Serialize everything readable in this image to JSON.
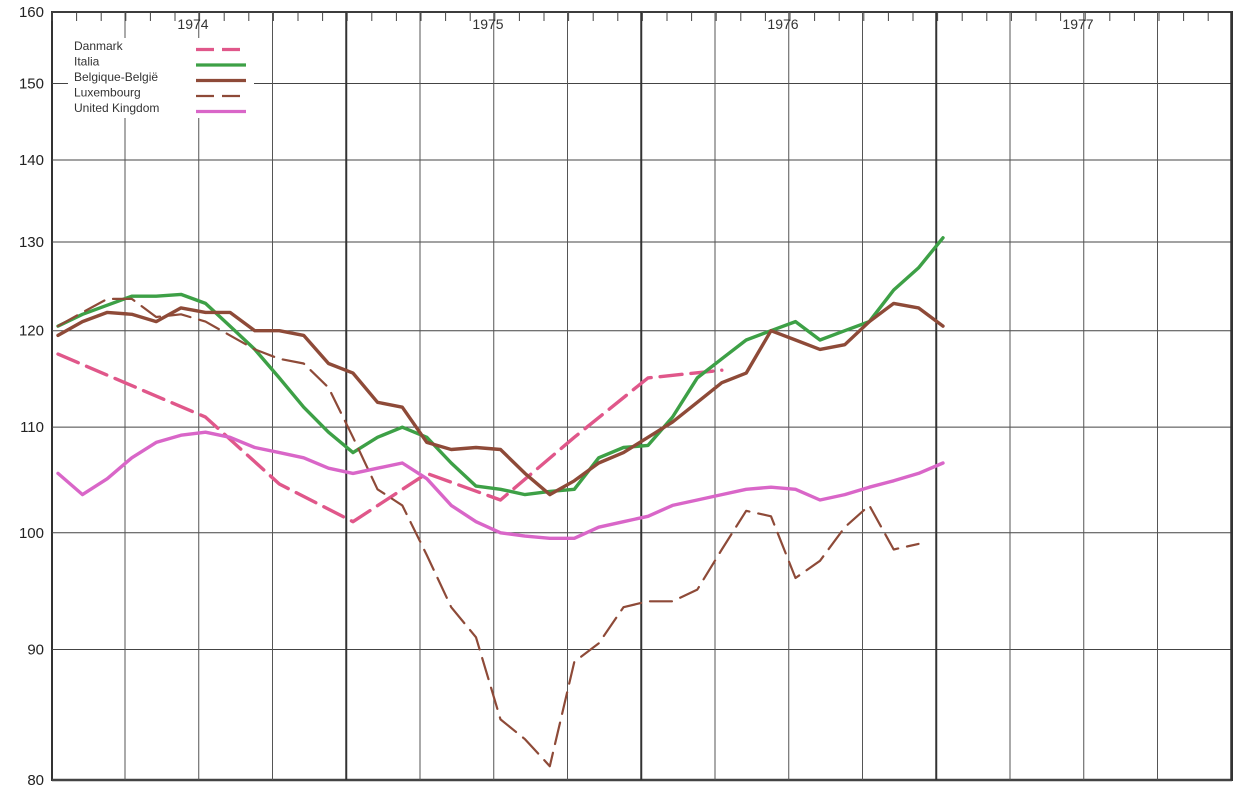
{
  "chart_data": {
    "type": "line",
    "yscale": "log",
    "ylim": [
      80,
      160
    ],
    "yticks": [
      80,
      90,
      100,
      110,
      120,
      130,
      140,
      150,
      160
    ],
    "xlim": [
      1974.0,
      1977.94
    ],
    "year_labels": [
      {
        "x": 1974.0,
        "label": "1974"
      },
      {
        "x": 1975.0,
        "label": "1975"
      },
      {
        "x": 1976.0,
        "label": "1976"
      },
      {
        "x": 1977.0,
        "label": "1977"
      }
    ],
    "legend_position": "top-left",
    "grid": true,
    "series": [
      {
        "name": "Danmark",
        "color": "#e0578a",
        "style": "dashed",
        "points": [
          [
            1974.0,
            117.5
          ],
          [
            1974.5,
            111.0
          ],
          [
            1974.75,
            104.5
          ],
          [
            1975.0,
            101.0
          ],
          [
            1975.25,
            105.5
          ],
          [
            1975.5,
            103.0
          ],
          [
            1975.75,
            109.0
          ],
          [
            1976.0,
            115.0
          ],
          [
            1976.25,
            115.8
          ]
        ]
      },
      {
        "name": "Italia",
        "color": "#3da046",
        "style": "solid",
        "points": [
          [
            1974.0,
            120.5
          ],
          [
            1974.083,
            121.8
          ],
          [
            1974.167,
            122.8
          ],
          [
            1974.25,
            123.8
          ],
          [
            1974.333,
            123.8
          ],
          [
            1974.417,
            124.0
          ],
          [
            1974.5,
            123.0
          ],
          [
            1974.583,
            120.5
          ],
          [
            1974.667,
            118.0
          ],
          [
            1974.75,
            115.0
          ],
          [
            1974.833,
            112.0
          ],
          [
            1974.917,
            109.5
          ],
          [
            1975.0,
            107.5
          ],
          [
            1975.083,
            109.0
          ],
          [
            1975.167,
            110.0
          ],
          [
            1975.25,
            109.0
          ],
          [
            1975.333,
            106.5
          ],
          [
            1975.417,
            104.3
          ],
          [
            1975.5,
            104.0
          ],
          [
            1975.583,
            103.5
          ],
          [
            1975.667,
            103.8
          ],
          [
            1975.75,
            104.0
          ],
          [
            1975.833,
            107.0
          ],
          [
            1975.917,
            108.0
          ],
          [
            1976.0,
            108.2
          ],
          [
            1976.083,
            111.0
          ],
          [
            1976.167,
            115.0
          ],
          [
            1976.25,
            117.0
          ],
          [
            1976.333,
            119.0
          ],
          [
            1976.417,
            120.0
          ],
          [
            1976.5,
            121.0
          ],
          [
            1976.583,
            119.0
          ],
          [
            1976.667,
            120.0
          ],
          [
            1976.75,
            121.0
          ],
          [
            1976.833,
            124.5
          ],
          [
            1976.917,
            127.0
          ],
          [
            1977.0,
            130.5
          ]
        ]
      },
      {
        "name": "Belgique-België",
        "color": "#8e4a38",
        "style": "solid",
        "points": [
          [
            1974.0,
            119.5
          ],
          [
            1974.083,
            121.0
          ],
          [
            1974.167,
            122.0
          ],
          [
            1974.25,
            121.8
          ],
          [
            1974.333,
            121.0
          ],
          [
            1974.417,
            122.5
          ],
          [
            1974.5,
            122.0
          ],
          [
            1974.583,
            122.0
          ],
          [
            1974.667,
            120.0
          ],
          [
            1974.75,
            120.0
          ],
          [
            1974.833,
            119.5
          ],
          [
            1974.917,
            116.5
          ],
          [
            1975.0,
            115.5
          ],
          [
            1975.083,
            112.5
          ],
          [
            1975.167,
            112.0
          ],
          [
            1975.25,
            108.5
          ],
          [
            1975.333,
            107.8
          ],
          [
            1975.417,
            108.0
          ],
          [
            1975.5,
            107.8
          ],
          [
            1975.583,
            105.5
          ],
          [
            1975.667,
            103.5
          ],
          [
            1975.75,
            104.8
          ],
          [
            1975.833,
            106.5
          ],
          [
            1975.917,
            107.5
          ],
          [
            1976.0,
            109.0
          ],
          [
            1976.083,
            110.5
          ],
          [
            1976.167,
            112.5
          ],
          [
            1976.25,
            114.5
          ],
          [
            1976.333,
            115.5
          ],
          [
            1976.417,
            120.0
          ],
          [
            1976.5,
            119.0
          ],
          [
            1976.583,
            118.0
          ],
          [
            1976.667,
            118.5
          ],
          [
            1976.75,
            121.0
          ],
          [
            1976.833,
            123.0
          ],
          [
            1976.917,
            122.5
          ],
          [
            1977.0,
            120.5
          ]
        ]
      },
      {
        "name": "Luxembourg",
        "color": "#8e4a38",
        "style": "dashed",
        "points": [
          [
            1974.0,
            120.5
          ],
          [
            1974.083,
            122.0
          ],
          [
            1974.167,
            123.5
          ],
          [
            1974.25,
            123.5
          ],
          [
            1974.333,
            121.5
          ],
          [
            1974.417,
            121.8
          ],
          [
            1974.5,
            121.0
          ],
          [
            1974.583,
            119.5
          ],
          [
            1974.667,
            118.0
          ],
          [
            1974.75,
            117.0
          ],
          [
            1974.833,
            116.5
          ],
          [
            1974.917,
            114.0
          ],
          [
            1975.0,
            109.0
          ],
          [
            1975.083,
            104.0
          ],
          [
            1975.167,
            102.5
          ],
          [
            1975.25,
            98.0
          ],
          [
            1975.333,
            93.5
          ],
          [
            1975.417,
            91.0
          ],
          [
            1975.5,
            84.5
          ],
          [
            1975.583,
            83.0
          ],
          [
            1975.667,
            81.0
          ],
          [
            1975.75,
            89.0
          ],
          [
            1975.833,
            90.5
          ],
          [
            1975.917,
            93.5
          ],
          [
            1976.0,
            94.0
          ],
          [
            1976.083,
            94.0
          ],
          [
            1976.167,
            95.0
          ],
          [
            1976.25,
            98.5
          ],
          [
            1976.333,
            102.0
          ],
          [
            1976.417,
            101.5
          ],
          [
            1976.5,
            96.0
          ],
          [
            1976.583,
            97.5
          ],
          [
            1976.667,
            100.5
          ],
          [
            1976.75,
            102.5
          ],
          [
            1976.833,
            98.5
          ],
          [
            1976.917,
            99.0
          ]
        ]
      },
      {
        "name": "United Kingdom",
        "color": "#d966c8",
        "style": "solid",
        "points": [
          [
            1974.0,
            105.5
          ],
          [
            1974.083,
            103.5
          ],
          [
            1974.167,
            105.0
          ],
          [
            1974.25,
            107.0
          ],
          [
            1974.333,
            108.5
          ],
          [
            1974.417,
            109.2
          ],
          [
            1974.5,
            109.5
          ],
          [
            1974.583,
            109.0
          ],
          [
            1974.667,
            108.0
          ],
          [
            1974.75,
            107.5
          ],
          [
            1974.833,
            107.0
          ],
          [
            1974.917,
            106.0
          ],
          [
            1975.0,
            105.5
          ],
          [
            1975.083,
            106.0
          ],
          [
            1975.167,
            106.5
          ],
          [
            1975.25,
            105.0
          ],
          [
            1975.333,
            102.5
          ],
          [
            1975.417,
            101.0
          ],
          [
            1975.5,
            100.0
          ],
          [
            1975.583,
            99.7
          ],
          [
            1975.667,
            99.5
          ],
          [
            1975.75,
            99.5
          ],
          [
            1975.833,
            100.5
          ],
          [
            1975.917,
            101.0
          ],
          [
            1976.0,
            101.5
          ],
          [
            1976.083,
            102.5
          ],
          [
            1976.167,
            103.0
          ],
          [
            1976.25,
            103.5
          ],
          [
            1976.333,
            104.0
          ],
          [
            1976.417,
            104.2
          ],
          [
            1976.5,
            104.0
          ],
          [
            1976.583,
            103.0
          ],
          [
            1976.667,
            103.5
          ],
          [
            1976.75,
            104.2
          ],
          [
            1976.833,
            104.8
          ],
          [
            1976.917,
            105.5
          ],
          [
            1977.0,
            106.5
          ]
        ]
      }
    ]
  }
}
